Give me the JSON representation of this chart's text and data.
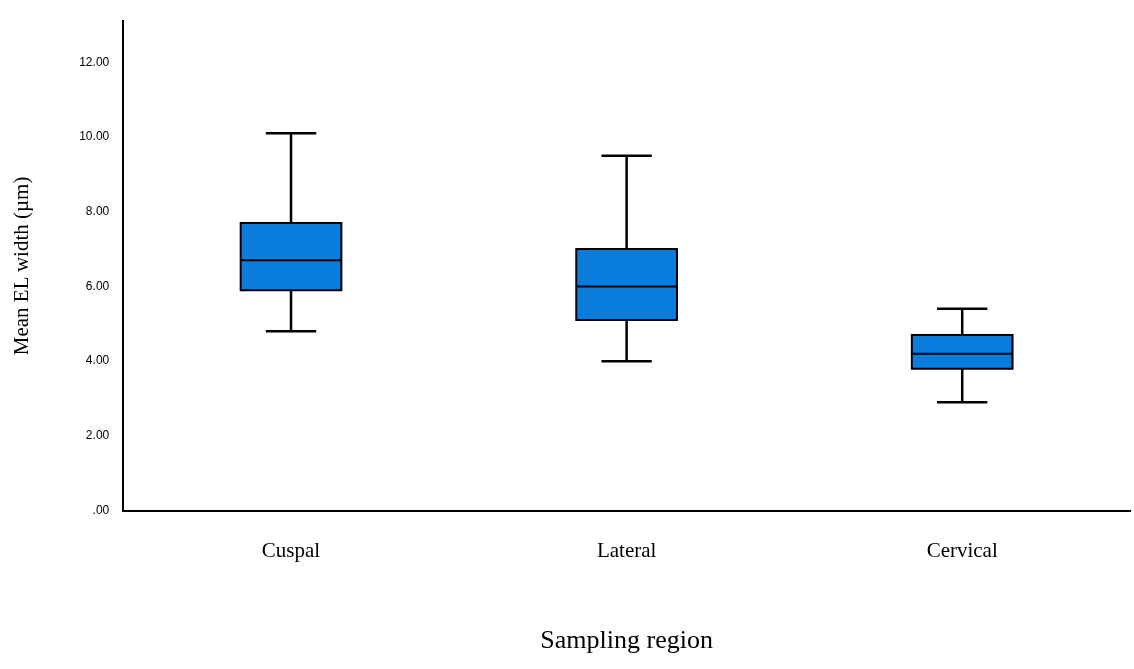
{
  "chart_data": {
    "type": "box",
    "xlabel": "Sampling region",
    "ylabel": "Mean EL width (µm)",
    "categories": [
      "Cuspal",
      "Lateral",
      "Cervical"
    ],
    "color": "#0a7ddc",
    "boxes": [
      {
        "low": 4.8,
        "q1": 5.9,
        "median": 6.7,
        "q3": 7.7,
        "high": 10.1
      },
      {
        "low": 4.0,
        "q1": 5.1,
        "median": 6.0,
        "q3": 7.0,
        "high": 9.5
      },
      {
        "low": 2.9,
        "q1": 3.8,
        "median": 4.2,
        "q3": 4.7,
        "high": 5.4
      }
    ],
    "ylim": [
      0,
      13.1
    ],
    "yticks": [
      {
        "value": 0,
        "label": ".00"
      },
      {
        "value": 2,
        "label": "2.00"
      },
      {
        "value": 4,
        "label": "4.00"
      },
      {
        "value": 6,
        "label": "6.00"
      },
      {
        "value": 8,
        "label": "8.00"
      },
      {
        "value": 10,
        "label": "10.00"
      },
      {
        "value": 12,
        "label": "12.00"
      }
    ],
    "grid": false
  }
}
